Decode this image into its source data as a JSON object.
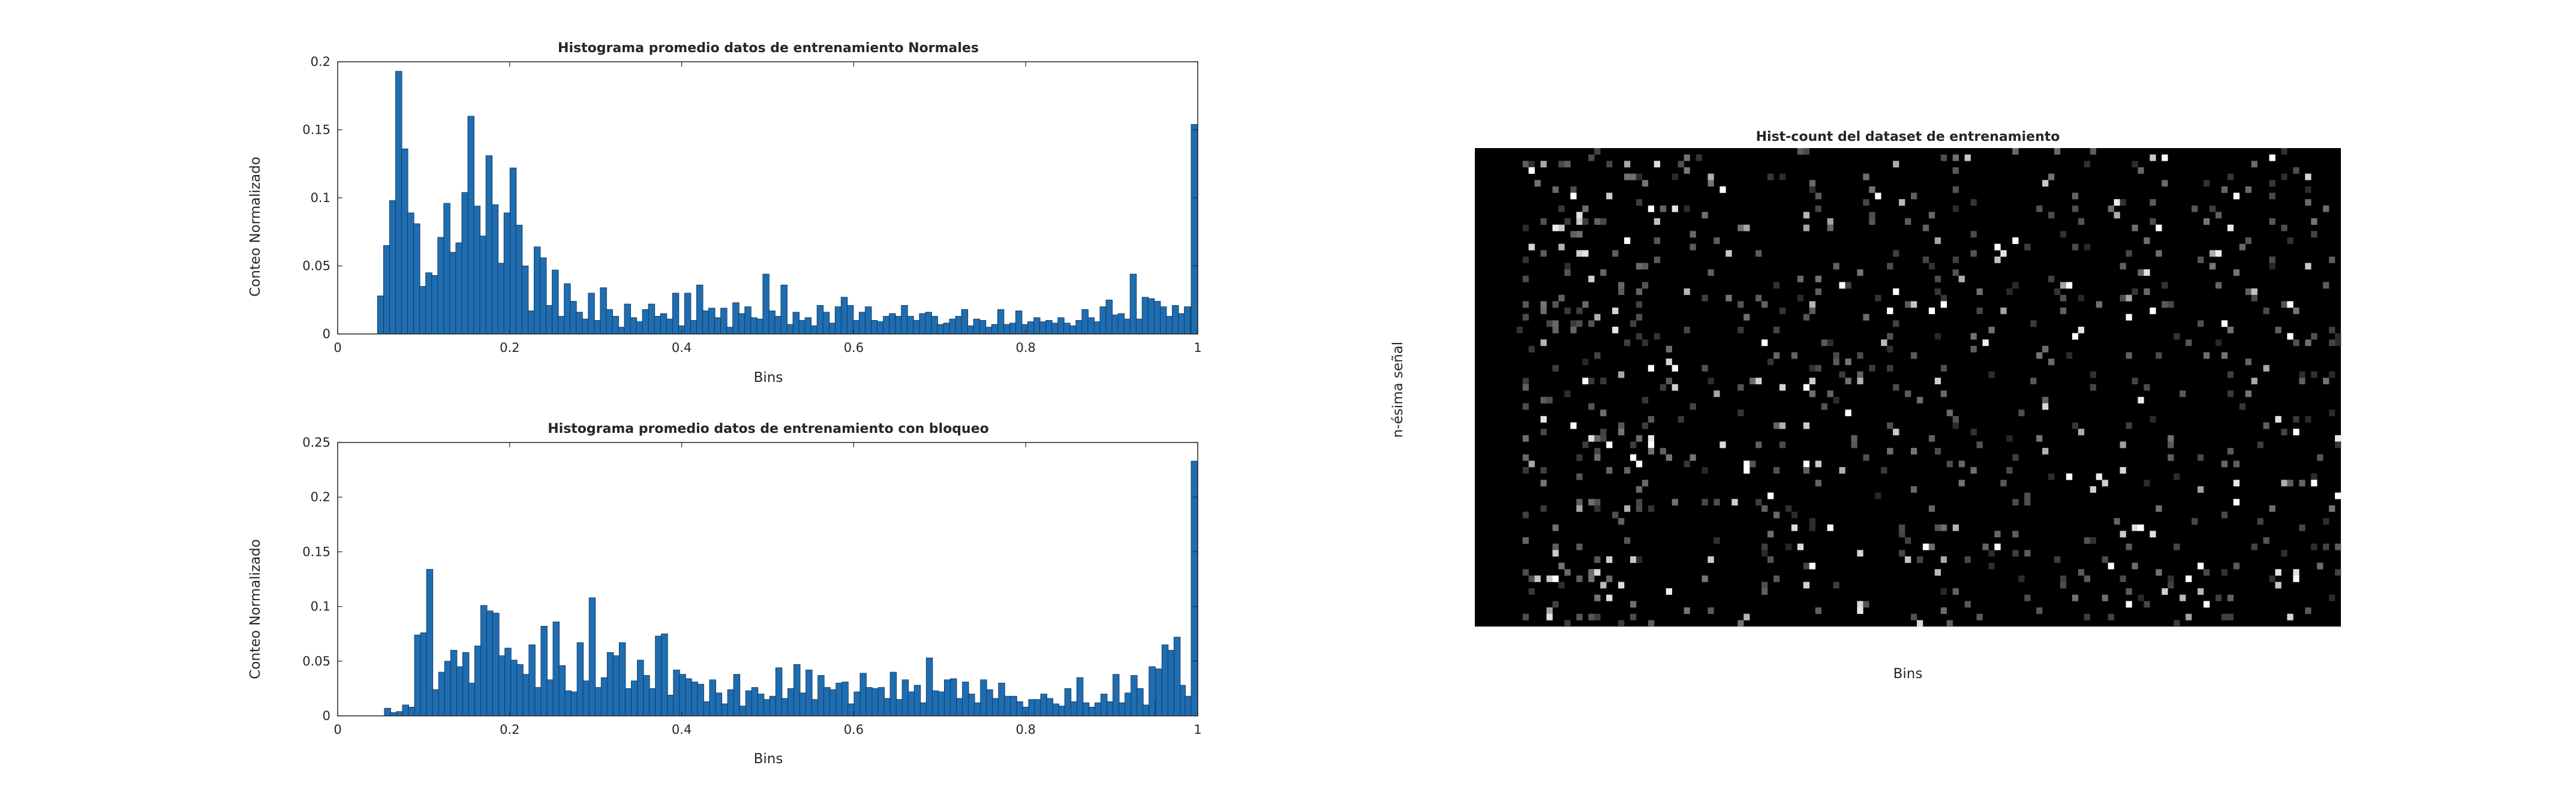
{
  "chart_data": [
    {
      "type": "bar",
      "title": "Histograma promedio datos de entrenamiento Normales",
      "xlabel": "Bins",
      "ylabel": "Conteo Normalizado",
      "xlim": [
        0,
        1
      ],
      "ylim": [
        0,
        0.2
      ],
      "xticks": [
        "0",
        "0.2",
        "0.4",
        "0.6",
        "0.8",
        "1"
      ],
      "yticks": [
        "0",
        "0.05",
        "0.1",
        "0.15",
        "0.2"
      ],
      "bar_color": "#1f6db0",
      "bin_width": 0.0074,
      "x": [
        0.05,
        0.057,
        0.064,
        0.071,
        0.078,
        0.085,
        0.092,
        0.099,
        0.106,
        0.113,
        0.12,
        0.127,
        0.134,
        0.141,
        0.148,
        0.155,
        0.162,
        0.169,
        0.176,
        0.183,
        0.19,
        0.197,
        0.204,
        0.211,
        0.218,
        0.225,
        0.232,
        0.239,
        0.246,
        0.253,
        0.26,
        0.267,
        0.274,
        0.281,
        0.288,
        0.295,
        0.302,
        0.309,
        0.316,
        0.323,
        0.33,
        0.337,
        0.344,
        0.351,
        0.358,
        0.365,
        0.372,
        0.379,
        0.386,
        0.393,
        0.4,
        0.407,
        0.414,
        0.421,
        0.428,
        0.435,
        0.442,
        0.449,
        0.456,
        0.463,
        0.47,
        0.477,
        0.484,
        0.491,
        0.498,
        0.505,
        0.512,
        0.519,
        0.526,
        0.533,
        0.54,
        0.547,
        0.554,
        0.561,
        0.568,
        0.575,
        0.582,
        0.589,
        0.596,
        0.603,
        0.61,
        0.617,
        0.624,
        0.631,
        0.638,
        0.645,
        0.652,
        0.659,
        0.666,
        0.673,
        0.68,
        0.687,
        0.694,
        0.701,
        0.708,
        0.715,
        0.722,
        0.729,
        0.736,
        0.743,
        0.75,
        0.757,
        0.764,
        0.771,
        0.778,
        0.785,
        0.792,
        0.799,
        0.806,
        0.813,
        0.82,
        0.827,
        0.834,
        0.841,
        0.848,
        0.855,
        0.862,
        0.869,
        0.876,
        0.883,
        0.89,
        0.897,
        0.904,
        0.911,
        0.918,
        0.925,
        0.932,
        0.939,
        0.946,
        0.953,
        0.96,
        0.967,
        0.974,
        0.981,
        0.988,
        0.995
      ],
      "values": [
        0.028,
        0.065,
        0.098,
        0.193,
        0.136,
        0.089,
        0.081,
        0.035,
        0.045,
        0.043,
        0.071,
        0.096,
        0.06,
        0.067,
        0.104,
        0.16,
        0.094,
        0.072,
        0.131,
        0.095,
        0.052,
        0.089,
        0.122,
        0.08,
        0.05,
        0.017,
        0.064,
        0.056,
        0.021,
        0.047,
        0.013,
        0.037,
        0.024,
        0.016,
        0.011,
        0.03,
        0.01,
        0.034,
        0.018,
        0.013,
        0.005,
        0.022,
        0.012,
        0.009,
        0.018,
        0.022,
        0.013,
        0.015,
        0.011,
        0.03,
        0.006,
        0.03,
        0.01,
        0.036,
        0.017,
        0.019,
        0.012,
        0.019,
        0.005,
        0.023,
        0.015,
        0.02,
        0.012,
        0.011,
        0.044,
        0.017,
        0.013,
        0.036,
        0.007,
        0.016,
        0.01,
        0.012,
        0.006,
        0.021,
        0.016,
        0.008,
        0.02,
        0.027,
        0.021,
        0.01,
        0.016,
        0.02,
        0.01,
        0.009,
        0.013,
        0.015,
        0.013,
        0.021,
        0.013,
        0.01,
        0.015,
        0.016,
        0.013,
        0.007,
        0.008,
        0.011,
        0.013,
        0.018,
        0.006,
        0.011,
        0.01,
        0.005,
        0.007,
        0.018,
        0.007,
        0.008,
        0.017,
        0.007,
        0.009,
        0.012,
        0.009,
        0.01,
        0.008,
        0.012,
        0.008,
        0.006,
        0.01,
        0.018,
        0.012,
        0.009,
        0.02,
        0.025,
        0.014,
        0.015,
        0.011,
        0.044,
        0.011,
        0.027,
        0.026,
        0.024,
        0.02,
        0.013,
        0.021,
        0.015,
        0.02,
        0.018
      ],
      "extra_bars": [
        {
          "x": 0.996,
          "value": 0.154
        }
      ]
    },
    {
      "type": "bar",
      "title": "Histograma promedio datos de entrenamiento con bloqueo",
      "xlabel": "Bins",
      "ylabel": "Conteo Normalizado",
      "xlim": [
        0,
        1
      ],
      "ylim": [
        0,
        0.25
      ],
      "xticks": [
        "0",
        "0.2",
        "0.4",
        "0.6",
        "0.8",
        "1"
      ],
      "yticks": [
        "0",
        "0.05",
        "0.1",
        "0.15",
        "0.2",
        "0.25"
      ],
      "bar_color": "#1f6db0",
      "bin_width": 0.0074,
      "x": [
        0.058,
        0.065,
        0.072,
        0.079,
        0.086,
        0.093,
        0.1,
        0.107,
        0.114,
        0.121,
        0.128,
        0.135,
        0.142,
        0.149,
        0.156,
        0.163,
        0.17,
        0.177,
        0.184,
        0.191,
        0.198,
        0.205,
        0.212,
        0.219,
        0.226,
        0.233,
        0.24,
        0.247,
        0.254,
        0.261,
        0.268,
        0.275,
        0.282,
        0.289,
        0.296,
        0.303,
        0.31,
        0.317,
        0.324,
        0.331,
        0.338,
        0.345,
        0.352,
        0.359,
        0.366,
        0.373,
        0.38,
        0.387,
        0.394,
        0.401,
        0.408,
        0.415,
        0.422,
        0.429,
        0.436,
        0.443,
        0.45,
        0.457,
        0.464,
        0.471,
        0.478,
        0.485,
        0.492,
        0.499,
        0.506,
        0.513,
        0.52,
        0.527,
        0.534,
        0.541,
        0.548,
        0.555,
        0.562,
        0.569,
        0.576,
        0.583,
        0.59,
        0.597,
        0.604,
        0.611,
        0.618,
        0.625,
        0.632,
        0.639,
        0.646,
        0.653,
        0.66,
        0.667,
        0.674,
        0.681,
        0.688,
        0.695,
        0.702,
        0.709,
        0.716,
        0.723,
        0.73,
        0.737,
        0.744,
        0.751,
        0.758,
        0.765,
        0.772,
        0.779,
        0.786,
        0.793,
        0.8,
        0.807,
        0.814,
        0.821,
        0.828,
        0.835,
        0.842,
        0.849,
        0.856,
        0.863,
        0.87,
        0.877,
        0.884,
        0.891,
        0.898,
        0.905,
        0.912,
        0.919,
        0.926,
        0.933,
        0.94,
        0.947,
        0.954,
        0.961,
        0.968,
        0.975,
        0.982,
        0.989
      ],
      "values": [
        0.007,
        0.003,
        0.004,
        0.01,
        0.008,
        0.074,
        0.076,
        0.134,
        0.024,
        0.04,
        0.05,
        0.06,
        0.045,
        0.058,
        0.03,
        0.064,
        0.101,
        0.096,
        0.094,
        0.055,
        0.062,
        0.051,
        0.047,
        0.038,
        0.065,
        0.026,
        0.082,
        0.033,
        0.086,
        0.046,
        0.023,
        0.022,
        0.067,
        0.032,
        0.108,
        0.026,
        0.035,
        0.058,
        0.055,
        0.067,
        0.025,
        0.032,
        0.051,
        0.037,
        0.025,
        0.073,
        0.075,
        0.019,
        0.042,
        0.038,
        0.034,
        0.031,
        0.029,
        0.013,
        0.033,
        0.021,
        0.011,
        0.024,
        0.038,
        0.009,
        0.023,
        0.026,
        0.02,
        0.015,
        0.018,
        0.044,
        0.016,
        0.025,
        0.047,
        0.021,
        0.042,
        0.015,
        0.037,
        0.026,
        0.024,
        0.03,
        0.031,
        0.011,
        0.022,
        0.039,
        0.026,
        0.025,
        0.026,
        0.016,
        0.04,
        0.015,
        0.033,
        0.022,
        0.028,
        0.012,
        0.053,
        0.023,
        0.022,
        0.033,
        0.034,
        0.016,
        0.031,
        0.02,
        0.012,
        0.033,
        0.024,
        0.016,
        0.03,
        0.018,
        0.018,
        0.013,
        0.008,
        0.015,
        0.015,
        0.02,
        0.016,
        0.011,
        0.009,
        0.025,
        0.013,
        0.035,
        0.012,
        0.008,
        0.012,
        0.02,
        0.013,
        0.038,
        0.012,
        0.021,
        0.037,
        0.025,
        0.01,
        0.045,
        0.014,
        0.008,
        0.025,
        0.048,
        0.028,
        0.018
      ],
      "extra_bars": [
        {
          "x": 0.955,
          "value": 0.043
        },
        {
          "x": 0.962,
          "value": 0.065
        },
        {
          "x": 0.969,
          "value": 0.06
        },
        {
          "x": 0.976,
          "value": 0.072
        },
        {
          "x": 0.996,
          "value": 0.233
        }
      ]
    },
    {
      "type": "heatmap",
      "title": "Hist-count del dataset de entrenamiento",
      "xlabel": "Bins",
      "ylabel": "n-ésima señal",
      "colormap": "gray",
      "background": "#000000",
      "rows": 75,
      "cols": 145,
      "note": "sparse bright cells on black; first ~7 columns are empty"
    }
  ]
}
